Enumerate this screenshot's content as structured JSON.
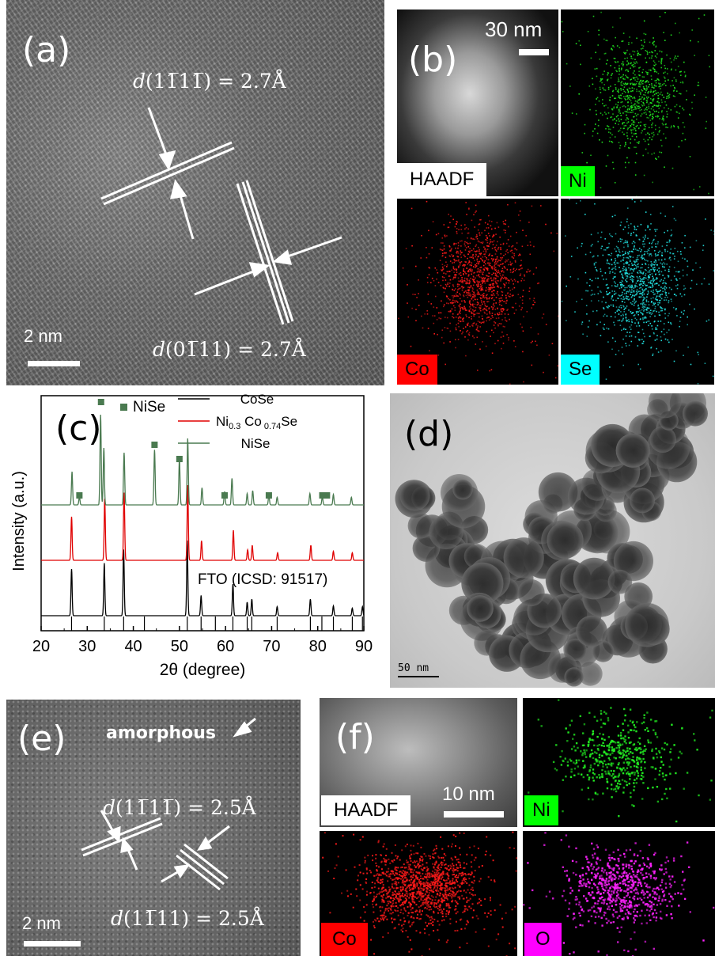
{
  "panel_a": {
    "label": "(a)",
    "annot_top": "d(1Ā1̄̄1̄) = 2.7Å",
    "annot_top_parts": {
      "d": "d",
      "hkl": "(11̅11̅)",
      "val": " = 2.7Å"
    },
    "annot_bottom_parts": {
      "d": "d",
      "hkl": "(01̅11)",
      "val": " = 2.7Å"
    },
    "scale": "2 nm"
  },
  "panel_b": {
    "label": "(b)",
    "scale": "30 nm",
    "maps": [
      {
        "name": "HAADF",
        "color": "#000000",
        "bg": "#ffffff"
      },
      {
        "name": "Ni",
        "color": "#00ff00",
        "bg": "#00ff00"
      },
      {
        "name": "Co",
        "color": "#ff0000",
        "bg": "#ff0000"
      },
      {
        "name": "Se",
        "color": "#00ffff",
        "bg": "#00ffff"
      }
    ]
  },
  "panel_c": {
    "label": "(c)",
    "marker_legend": "NiSe",
    "ref_label": "FTO (ICSD: 91517)",
    "legend": {
      "s1": "CoSe",
      "s2_main": "Ni",
      "s2_sub1": "0.3",
      "s2_mid": " Co",
      "s2_sub2": " 0.74",
      "s2_end": "Se",
      "s3": "NiSe"
    }
  },
  "chart_data": {
    "type": "line",
    "title": "",
    "xlabel": "2θ (degree)",
    "ylabel": "Intensity (a.u.)",
    "xlim": [
      20,
      90
    ],
    "xticks": [
      20,
      30,
      40,
      50,
      60,
      70,
      80,
      90
    ],
    "series": [
      {
        "name": "CoSe",
        "color": "#000000",
        "peaks": [
          [
            26.6,
            62
          ],
          [
            33.7,
            70
          ],
          [
            37.9,
            88
          ],
          [
            51.7,
            100
          ],
          [
            54.7,
            27
          ],
          [
            61.6,
            42
          ],
          [
            64.7,
            18
          ],
          [
            65.7,
            22
          ],
          [
            71.2,
            12
          ],
          [
            78.4,
            22
          ],
          [
            83.4,
            13
          ],
          [
            87.5,
            10
          ],
          [
            89.7,
            12
          ]
        ]
      },
      {
        "name": "Ni0.3 Co 0.74Se",
        "color": "#e00000",
        "peaks": [
          [
            26.6,
            58
          ],
          [
            33.8,
            82
          ],
          [
            38.0,
            90
          ],
          [
            51.8,
            100
          ],
          [
            54.8,
            26
          ],
          [
            61.7,
            40
          ],
          [
            64.8,
            14
          ],
          [
            65.8,
            20
          ],
          [
            71.3,
            10
          ],
          [
            78.5,
            20
          ],
          [
            83.4,
            12
          ],
          [
            87.5,
            10
          ]
        ]
      },
      {
        "name": "NiSe",
        "color": "#4a7a50",
        "peaks": [
          [
            26.7,
            35
          ],
          [
            28.3,
            8
          ],
          [
            32.9,
            95
          ],
          [
            33.6,
            60
          ],
          [
            38.0,
            55
          ],
          [
            44.6,
            58
          ],
          [
            50.0,
            50
          ],
          [
            51.8,
            70
          ],
          [
            54.9,
            18
          ],
          [
            59.8,
            14
          ],
          [
            61.4,
            28
          ],
          [
            64.7,
            12
          ],
          [
            65.9,
            15
          ],
          [
            69.4,
            10
          ],
          [
            71.2,
            8
          ],
          [
            78.3,
            12
          ],
          [
            81.0,
            9
          ],
          [
            83.4,
            11
          ],
          [
            87.3,
            8
          ]
        ]
      }
    ],
    "reference_lines": [
      26.6,
      33.7,
      37.9,
      42.4,
      51.7,
      54.7,
      57.8,
      61.6,
      64.7,
      65.7,
      71.2,
      78.4,
      80.9,
      83.4,
      87.5,
      89.7
    ],
    "marker_positions": [
      {
        "x": 33.0,
        "level": "top"
      },
      {
        "x": 44.6,
        "level": "high"
      },
      {
        "x": 50.0,
        "level": "mid"
      },
      {
        "x": 28.3,
        "level": "low"
      },
      {
        "x": 59.8,
        "level": "low"
      },
      {
        "x": 69.4,
        "level": "low"
      },
      {
        "x": 81.0,
        "level": "low"
      },
      {
        "x": 82.0,
        "level": "low"
      }
    ]
  },
  "panel_d": {
    "label": "(d)",
    "scale": "50 nm"
  },
  "panel_e": {
    "label": "(e)",
    "amorphous": "amorphous",
    "annot_top_parts": {
      "d": "d",
      "hkl": "(11̅11̅)",
      "val": " = 2.5Å"
    },
    "annot_bottom_parts": {
      "d": "d",
      "hkl": "(11̅11)",
      "val": " = 2.5Å"
    },
    "scale": "2 nm"
  },
  "panel_f": {
    "label": "(f)",
    "scale": "10 nm",
    "maps": [
      {
        "name": "HAADF",
        "color": "#000000",
        "bg": "#ffffff"
      },
      {
        "name": "Ni",
        "color": "#000000",
        "bg": "#00ff00"
      },
      {
        "name": "Co",
        "color": "#000000",
        "bg": "#ff0000"
      },
      {
        "name": "O",
        "color": "#000000",
        "bg": "#ff00ff"
      }
    ]
  }
}
